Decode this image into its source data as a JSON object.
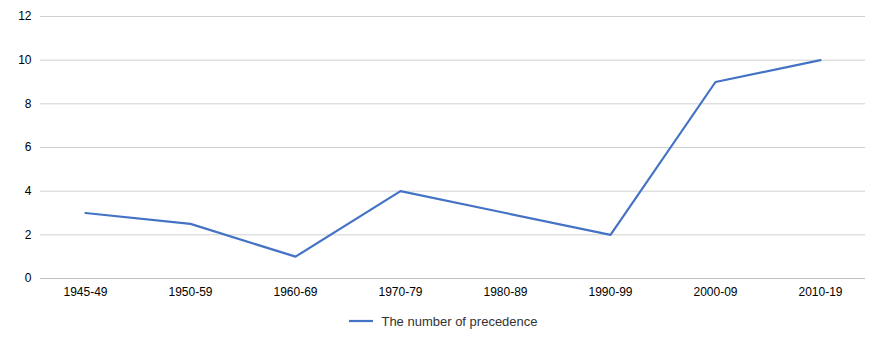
{
  "chart_data": {
    "type": "line",
    "categories": [
      "1945-49",
      "1950-59",
      "1960-69",
      "1970-79",
      "1980-89",
      "1990-99",
      "2000-09",
      "2010-19"
    ],
    "series": [
      {
        "name": "The number of precedence",
        "color": "#4472C4",
        "values": [
          3,
          2.5,
          1,
          4,
          3,
          2,
          9,
          10
        ]
      }
    ],
    "ylim": [
      0,
      12
    ],
    "yticks": [
      0,
      2,
      4,
      6,
      8,
      10,
      12
    ],
    "grid": true,
    "legend": "bottom"
  }
}
